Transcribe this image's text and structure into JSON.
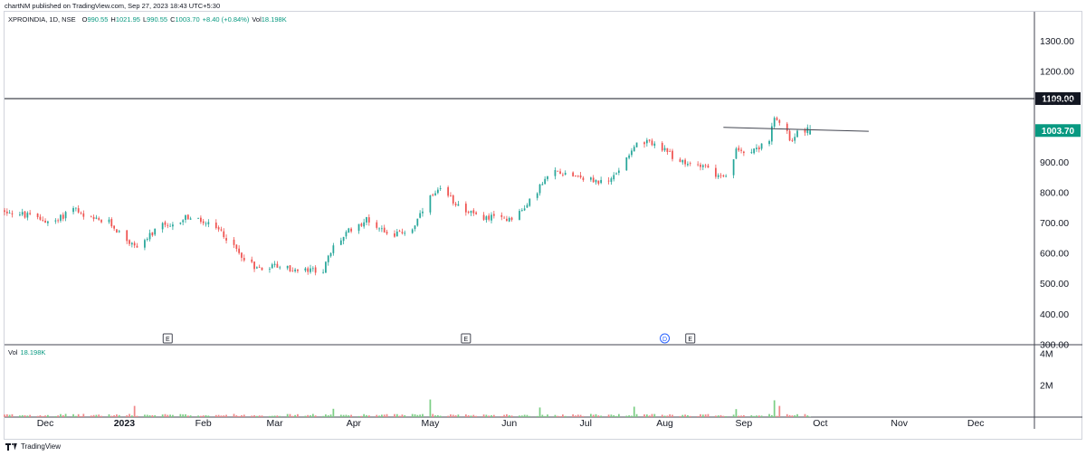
{
  "header": {
    "published_text": "chartNM published on TradingView.com, Sep 27, 2023 18:43 UTC+5:30"
  },
  "legend": {
    "ticker": "XPROINDIA, 1D, NSE",
    "open_label": "O",
    "open_value": "990.55",
    "high_label": "H",
    "high_value": "1021.95",
    "low_label": "L",
    "low_value": "990.55",
    "close_label": "C",
    "close_value": "1003.70",
    "change_value": "+8.40 (+0.84%)",
    "vol_label": "Vol",
    "vol_value": "18.198K"
  },
  "volume_pane": {
    "label": "Vol",
    "value": "18.198K"
  },
  "footer": {
    "brand": "TradingView"
  },
  "colors": {
    "up": "#26a69a",
    "down": "#ef5350",
    "up_volume": "#7ccf85",
    "down_volume": "#f0888a",
    "resistance_line": "#131722",
    "last_price_tag": "#089981"
  },
  "events": [
    {
      "letter": "E",
      "date": "2023-01-18"
    },
    {
      "letter": "E",
      "date": "2023-05-15"
    },
    {
      "letter": "D",
      "date": "2023-08-01"
    },
    {
      "letter": "E",
      "date": "2023-08-11"
    }
  ],
  "chart_data": {
    "type": "candlestick",
    "symbol": "XPROINDIA",
    "interval": "1D",
    "exchange": "NSE",
    "x_tick_labels": [
      "Dec",
      "2023",
      "Feb",
      "Mar",
      "Apr",
      "May",
      "Jun",
      "Jul",
      "Aug",
      "Sep",
      "Oct",
      "Nov",
      "Dec"
    ],
    "x_tick_dates": [
      "2022-12-01",
      "2023-01-01",
      "2023-02-01",
      "2023-03-01",
      "2023-04-01",
      "2023-05-01",
      "2023-06-01",
      "2023-07-01",
      "2023-08-01",
      "2023-09-01",
      "2023-10-01",
      "2023-11-01",
      "2023-12-01"
    ],
    "x_range": [
      "2022-11-15",
      "2023-12-24"
    ],
    "y_ticks": [
      "1300.00",
      "1200.00",
      "1100.00",
      "900.00",
      "800.00",
      "700.00",
      "600.00",
      "500.00",
      "400.00",
      "300.00"
    ],
    "y_tick_values": [
      1300,
      1200,
      1100,
      900,
      800,
      700,
      600,
      500,
      400,
      300
    ],
    "ylim": [
      298,
      1395
    ],
    "horizontal_line": {
      "value": 1109,
      "label": "1109.00"
    },
    "last_price": {
      "value": 1003.7,
      "label": "1003.70"
    },
    "trendline": {
      "start_date": "2023-08-24",
      "start_value": 1014,
      "end_date": "2023-10-20",
      "end_value": 1001
    },
    "volume_axis": {
      "ticks": [
        "4M",
        "2M"
      ],
      "tick_values": [
        4000000,
        2000000
      ],
      "ylim": [
        0,
        4300000
      ]
    },
    "price_anchors": [
      [
        "2022-11-15",
        740
      ],
      [
        "2022-11-25",
        720
      ],
      [
        "2022-12-05",
        700
      ],
      [
        "2022-12-12",
        755
      ],
      [
        "2022-12-16",
        715
      ],
      [
        "2022-12-26",
        700
      ],
      [
        "2023-01-05",
        620
      ],
      [
        "2023-01-10",
        650
      ],
      [
        "2023-01-16",
        690
      ],
      [
        "2023-01-19",
        680
      ],
      [
        "2023-01-25",
        720
      ],
      [
        "2023-02-01",
        700
      ],
      [
        "2023-02-08",
        670
      ],
      [
        "2023-02-15",
        600
      ],
      [
        "2023-02-22",
        550
      ],
      [
        "2023-03-01",
        560
      ],
      [
        "2023-03-10",
        540
      ],
      [
        "2023-03-20",
        545
      ],
      [
        "2023-03-24",
        620
      ],
      [
        "2023-03-31",
        680
      ],
      [
        "2023-04-06",
        710
      ],
      [
        "2023-04-12",
        680
      ],
      [
        "2023-04-17",
        660
      ],
      [
        "2023-04-24",
        680
      ],
      [
        "2023-05-01",
        780
      ],
      [
        "2023-05-05",
        805
      ],
      [
        "2023-05-12",
        760
      ],
      [
        "2023-05-19",
        720
      ],
      [
        "2023-05-26",
        715
      ],
      [
        "2023-06-01",
        715
      ],
      [
        "2023-06-07",
        745
      ],
      [
        "2023-06-13",
        820
      ],
      [
        "2023-06-19",
        870
      ],
      [
        "2023-06-26",
        860
      ],
      [
        "2023-07-03",
        840
      ],
      [
        "2023-07-10",
        830
      ],
      [
        "2023-07-14",
        880
      ],
      [
        "2023-07-20",
        955
      ],
      [
        "2023-07-27",
        965
      ],
      [
        "2023-08-02",
        930
      ],
      [
        "2023-08-09",
        890
      ],
      [
        "2023-08-16",
        895
      ],
      [
        "2023-08-22",
        850
      ],
      [
        "2023-08-25",
        845
      ],
      [
        "2023-08-29",
        935
      ],
      [
        "2023-09-06",
        945
      ],
      [
        "2023-09-11",
        975
      ],
      [
        "2023-09-13",
        1040
      ],
      [
        "2023-09-18",
        1000
      ],
      [
        "2023-09-20",
        960
      ],
      [
        "2023-09-22",
        1010
      ],
      [
        "2023-09-27",
        1003.7
      ]
    ],
    "volume_spikes": [
      [
        "2023-01-05",
        700000
      ],
      [
        "2023-03-24",
        520000
      ],
      [
        "2023-05-01",
        1100000
      ],
      [
        "2023-06-13",
        600000
      ],
      [
        "2023-07-20",
        650000
      ],
      [
        "2023-08-29",
        500000
      ],
      [
        "2023-09-13",
        1050000
      ],
      [
        "2023-09-15",
        700000
      ]
    ]
  }
}
